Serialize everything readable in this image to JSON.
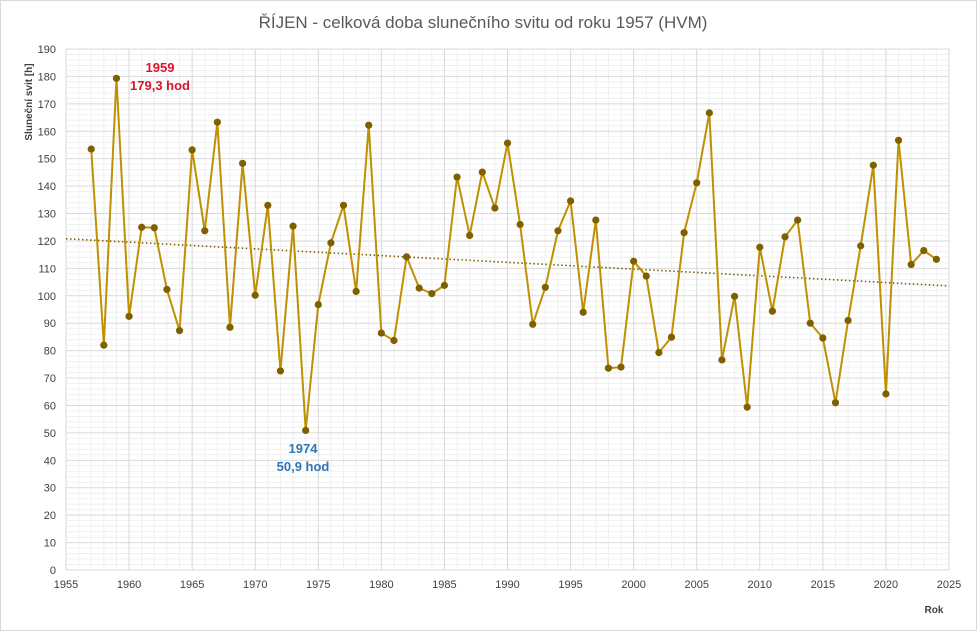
{
  "chart_data": {
    "type": "line",
    "title": "ŘÍJEN - celková doba slunečního svitu od roku 1957 (HVM)",
    "xlabel": "Rok",
    "ylabel": "Sluneční svit [h]",
    "xlim": [
      1955,
      2025
    ],
    "ylim": [
      0,
      190
    ],
    "x_ticks": [
      1955,
      1960,
      1965,
      1970,
      1975,
      1980,
      1985,
      1990,
      1995,
      2000,
      2005,
      2010,
      2015,
      2020,
      2025
    ],
    "y_ticks": [
      0,
      10,
      20,
      30,
      40,
      50,
      60,
      70,
      80,
      90,
      100,
      110,
      120,
      130,
      140,
      150,
      160,
      170,
      180,
      190
    ],
    "grid": true,
    "legend": "none",
    "series": [
      {
        "x": [
          1957,
          1958,
          1959,
          1960,
          1961,
          1962,
          1963,
          1964,
          1965,
          1966,
          1967,
          1968,
          1969,
          1970,
          1971,
          1972,
          1973,
          1974,
          1975,
          1976,
          1977,
          1978,
          1979,
          1980,
          1981,
          1982,
          1983,
          1984,
          1985,
          1986,
          1987,
          1988,
          1989,
          1990,
          1991,
          1992,
          1993,
          1994,
          1995,
          1996,
          1997,
          1998,
          1999,
          2000,
          2001,
          2002,
          2003,
          2004,
          2005,
          2006,
          2007,
          2008,
          2009,
          2010,
          2011,
          2012,
          2013,
          2014,
          2015,
          2016,
          2017,
          2018,
          2019,
          2020,
          2021,
          2022,
          2023,
          2024
        ],
        "values": [
          153.5,
          82,
          179.3,
          92.5,
          125,
          124.8,
          102.3,
          87.3,
          153.2,
          123.7,
          163.3,
          88.5,
          148.3,
          100.2,
          133,
          72.6,
          125.4,
          50.9,
          96.8,
          119.3,
          133,
          101.6,
          162.2,
          86.4,
          83.7,
          114.2,
          102.8,
          100.8,
          103.8,
          143.3,
          122,
          145.1,
          132,
          155.7,
          126,
          89.6,
          103.1,
          123.7,
          134.6,
          94,
          127.6,
          73.6,
          74,
          112.6,
          107.2,
          79.3,
          84.9,
          123,
          141.2,
          166.7,
          76.6,
          99.8,
          59.4,
          117.7,
          94.4,
          121.5,
          127.6,
          90,
          84.6,
          61,
          91,
          118.2,
          147.6,
          64.2,
          156.7,
          111.4,
          116.5,
          113.3
        ],
        "color": "#bf9000",
        "marker_color": "#7f6000"
      }
    ],
    "trendline": {
      "start": [
        1955,
        120.8
      ],
      "end": [
        2025,
        103.6
      ],
      "style": "dotted",
      "color": "#7f6000"
    },
    "annotations": [
      {
        "year": "1959",
        "text": "179,3 hod",
        "color": "#d9152b"
      },
      {
        "year": "1974",
        "text": "50,9 hod",
        "color": "#2e75b6"
      }
    ]
  }
}
